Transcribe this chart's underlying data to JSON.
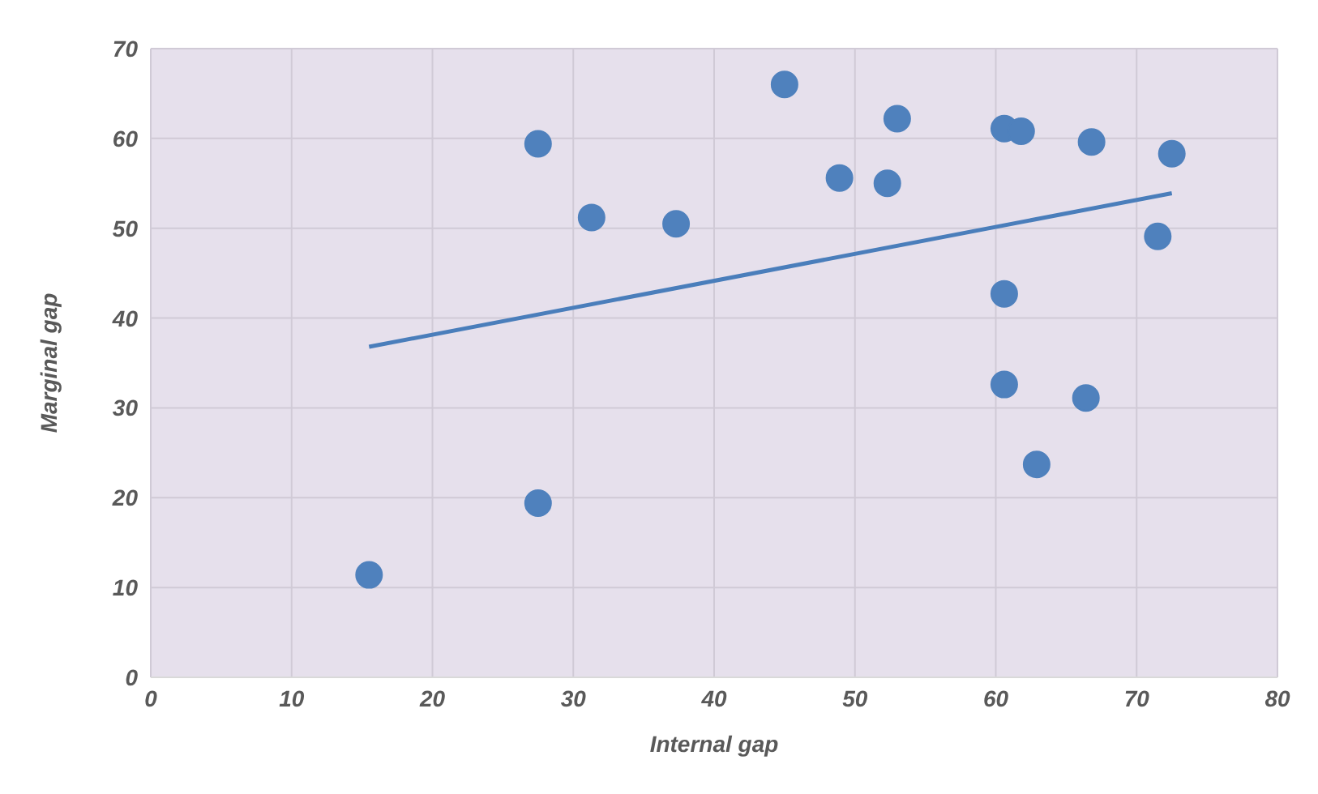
{
  "chart_data": {
    "type": "scatter",
    "xlabel": "Internal gap",
    "ylabel": "Marginal gap",
    "xlim": [
      0,
      80
    ],
    "xticks": [
      0,
      10,
      20,
      30,
      40,
      50,
      60,
      70,
      80
    ],
    "ylim": [
      0,
      70
    ],
    "yticks": [
      0,
      10,
      20,
      30,
      40,
      50,
      60,
      70
    ],
    "grid": true,
    "legend": false,
    "series": [
      {
        "marker": "circle",
        "color": "#4f81bd",
        "x": [
          15.5,
          27.5,
          27.5,
          31.3,
          37.3,
          45,
          48.9,
          52.3,
          53,
          60.6,
          61.8,
          60.6,
          60.6,
          62.9,
          66.4,
          66.8,
          71.5,
          72.5
        ],
        "values": [
          11.4,
          19.4,
          59.4,
          51.2,
          50.5,
          66,
          55.6,
          55,
          62.2,
          61.1,
          60.8,
          42.7,
          32.6,
          23.7,
          31.1,
          59.6,
          49.1,
          58.3
        ]
      },
      {
        "type": "line",
        "marker": "none",
        "color": "#4a7ebb",
        "x": [
          15.5,
          72.5
        ],
        "values": [
          36.8,
          53.9
        ]
      }
    ]
  }
}
